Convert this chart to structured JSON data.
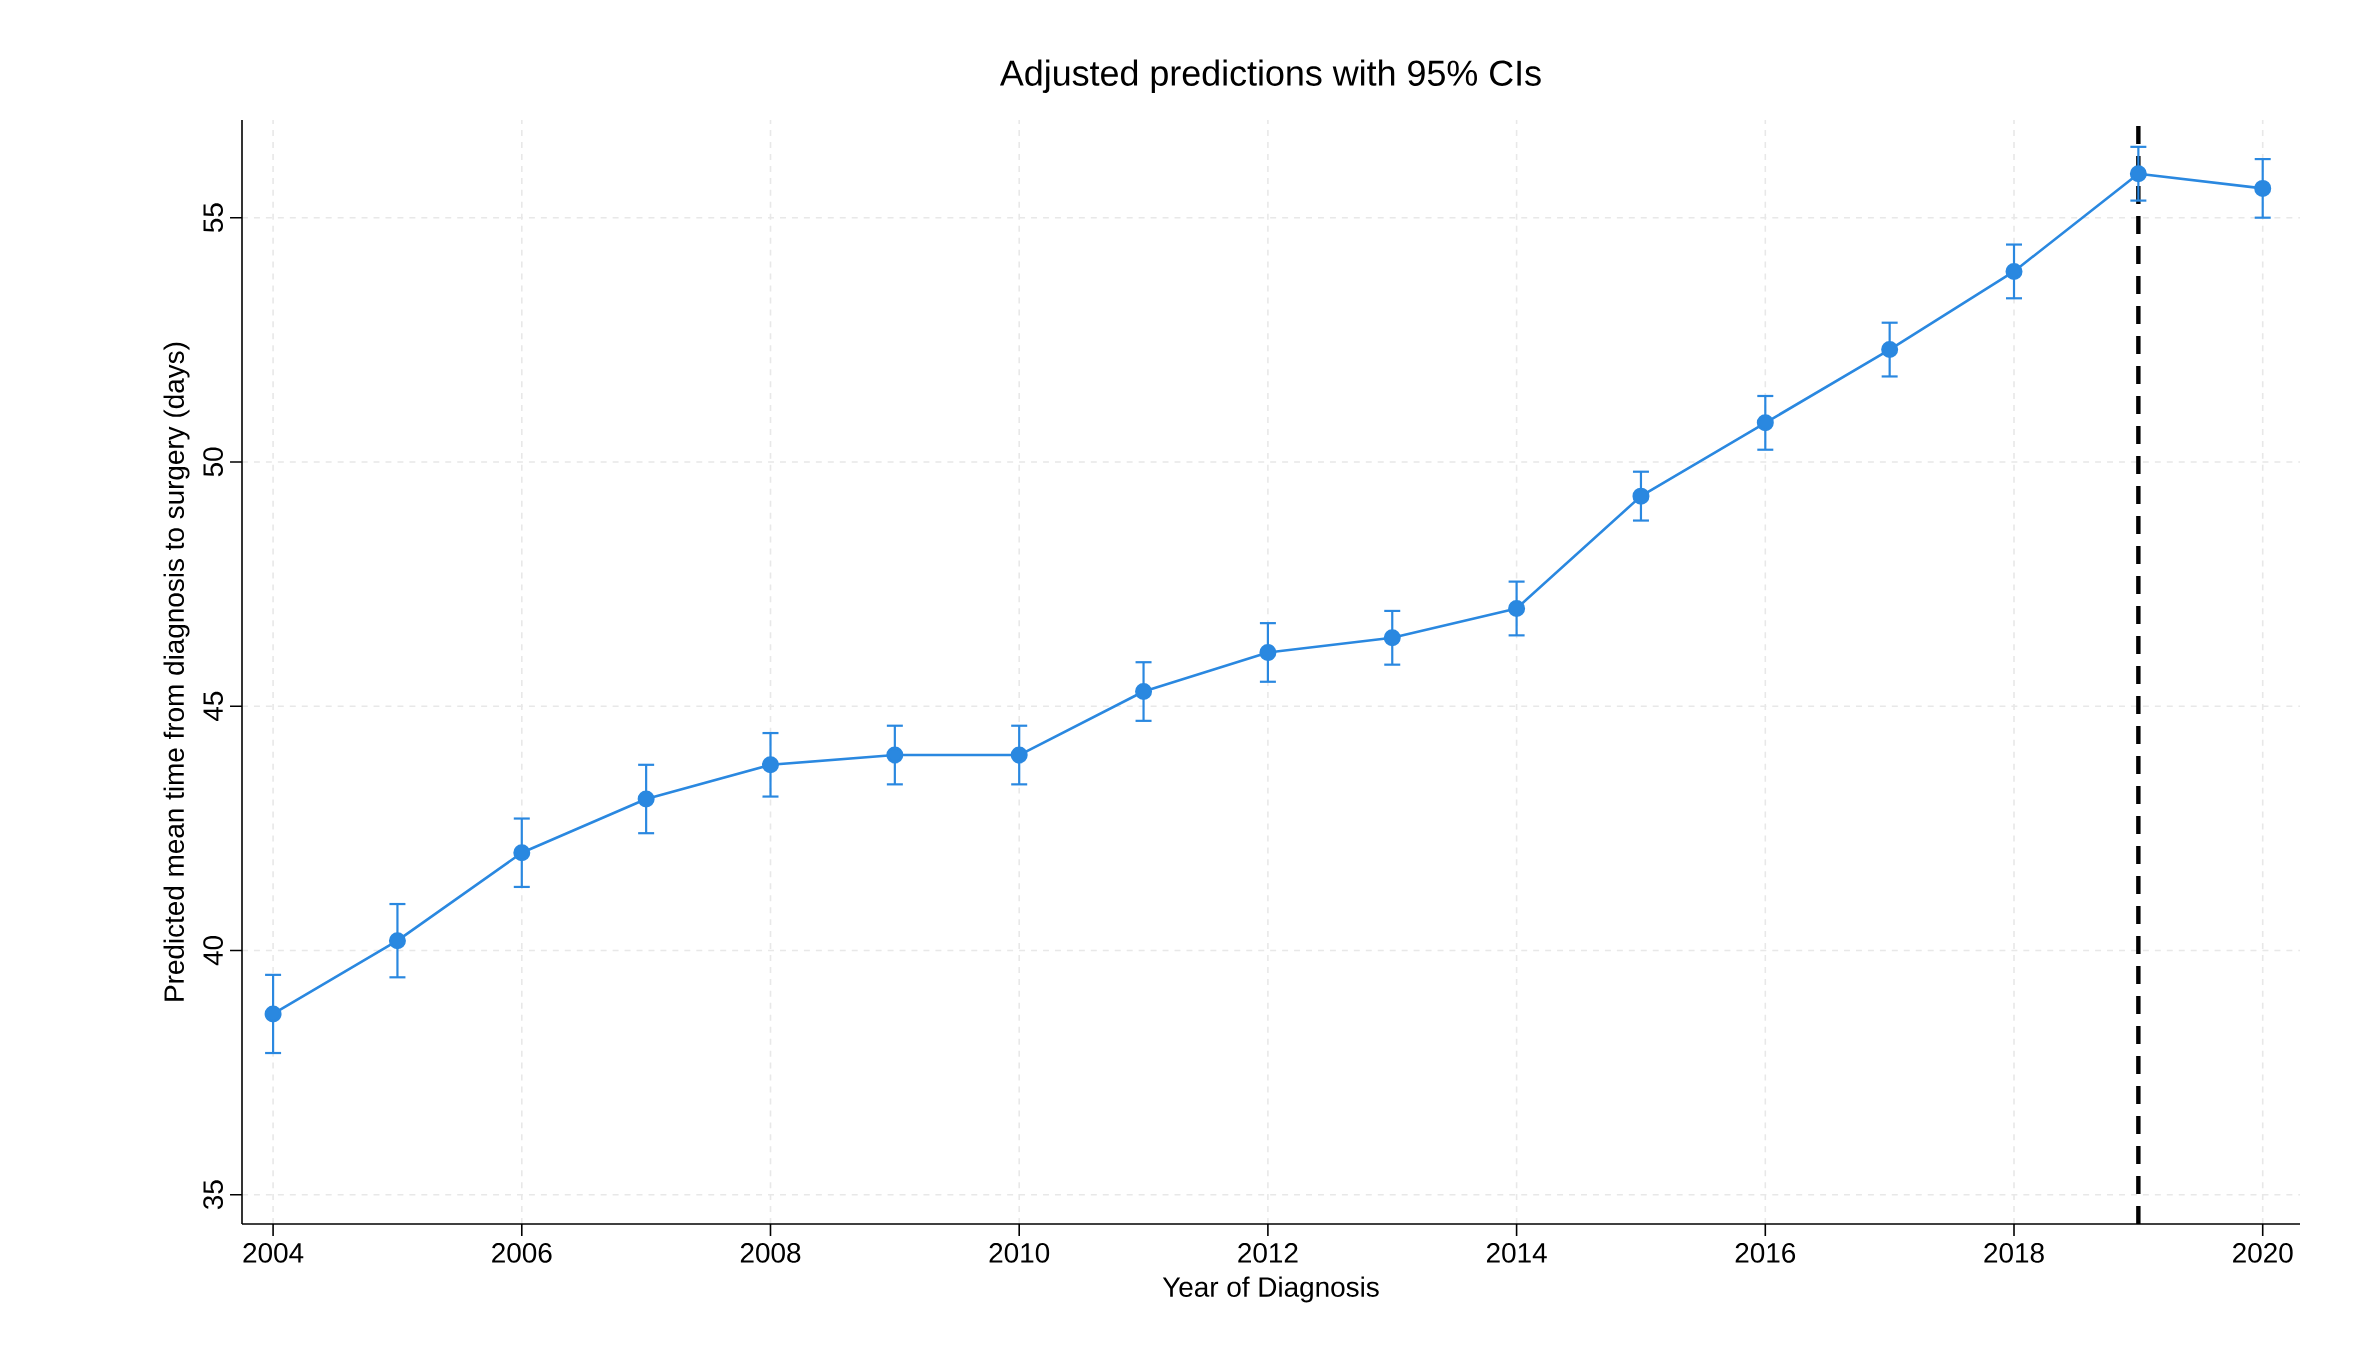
{
  "chart_data": {
    "type": "line",
    "title": "Adjusted predictions with 95% CIs",
    "xlabel": "Year of Diagnosis",
    "ylabel": "Predicted mean time from diagnosis to surgery (days)",
    "x": [
      2004,
      2005,
      2006,
      2007,
      2008,
      2009,
      2010,
      2011,
      2012,
      2013,
      2014,
      2015,
      2016,
      2017,
      2018,
      2019,
      2020
    ],
    "series": [
      {
        "color": "#2a88e0",
        "values": [
          38.7,
          40.2,
          42.0,
          43.1,
          43.8,
          44.0,
          44.0,
          45.3,
          46.1,
          46.4,
          47.0,
          49.3,
          50.8,
          52.3,
          53.9,
          55.9,
          55.6
        ],
        "errors": [
          0.8,
          0.75,
          0.7,
          0.7,
          0.65,
          0.6,
          0.6,
          0.6,
          0.6,
          0.55,
          0.55,
          0.5,
          0.55,
          0.55,
          0.55,
          0.55,
          0.6
        ]
      }
    ],
    "xlim": [
      2003.75,
      2020.3
    ],
    "ylim": [
      34.4,
      57.0
    ],
    "xticks": [
      2004,
      2006,
      2008,
      2010,
      2012,
      2014,
      2016,
      2018,
      2020
    ],
    "yticks": [
      35,
      40,
      45,
      50,
      55
    ],
    "ref_lines": [
      {
        "axis": "x",
        "value": 2019,
        "color": "#000000",
        "line_style": "dashed"
      }
    ],
    "grid": true,
    "marker": "circle",
    "line_style": "solid"
  }
}
